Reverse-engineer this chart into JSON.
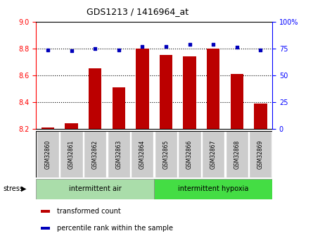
{
  "title": "GDS1213 / 1416964_at",
  "samples": [
    "GSM32860",
    "GSM32861",
    "GSM32862",
    "GSM32863",
    "GSM32864",
    "GSM32865",
    "GSM32866",
    "GSM32867",
    "GSM32868",
    "GSM32869"
  ],
  "bar_values": [
    8.21,
    8.24,
    8.65,
    8.51,
    8.8,
    8.75,
    8.74,
    8.8,
    8.61,
    8.39
  ],
  "percentile_values": [
    74,
    73,
    75,
    74,
    77,
    77,
    79,
    79,
    76,
    74
  ],
  "bar_bottom": 8.2,
  "left_ylim": [
    8.2,
    9.0
  ],
  "right_ylim": [
    0,
    100
  ],
  "left_yticks": [
    8.2,
    8.4,
    8.6,
    8.8,
    9.0
  ],
  "right_yticks": [
    0,
    25,
    50,
    75,
    100
  ],
  "right_yticklabels": [
    "0",
    "25",
    "50",
    "75",
    "100%"
  ],
  "bar_color": "#bb0000",
  "dot_color": "#0000bb",
  "group1_label": "intermittent air",
  "group2_label": "intermittent hypoxia",
  "group1_color": "#aaddaa",
  "group2_color": "#44dd44",
  "tick_bg_color": "#cccccc",
  "stress_label": "stress",
  "legend1": "transformed count",
  "legend2": "percentile rank within the sample",
  "bar_width": 0.55,
  "grid_color": "black",
  "figure_bg": "#ffffff"
}
